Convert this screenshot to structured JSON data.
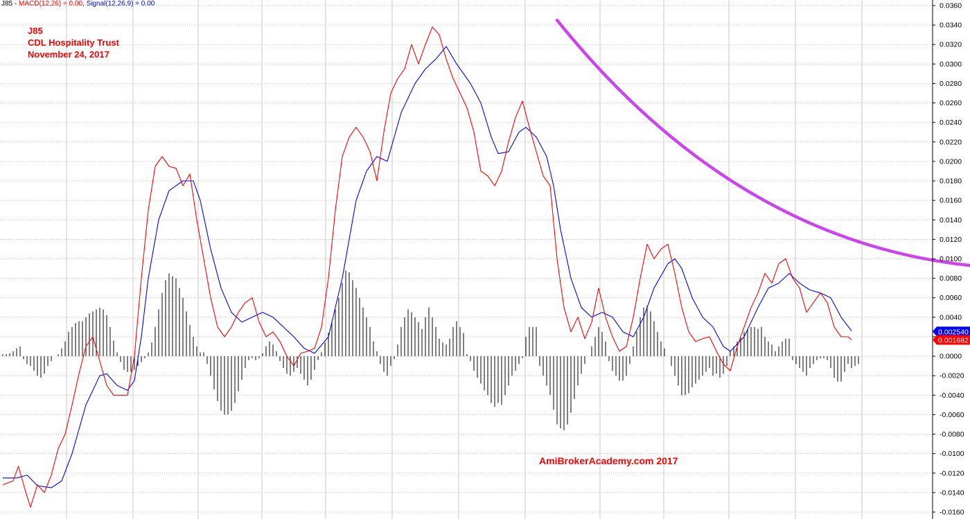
{
  "header": {
    "symbol": "J85",
    "sep": " - ",
    "macd_label": "MACD(12,26) = 0.00",
    "comma": ", ",
    "signal_label": "Signal(12,26,9) = 0.00"
  },
  "annotations": [
    "J85",
    "CDL Hospitality Trust",
    "November 24, 2017"
  ],
  "watermark": "AmiBrokerAcademy.com  2017",
  "colors": {
    "macd": "#ff0000",
    "signal": "#0000ff",
    "histogram": "#000000",
    "trendline": "#cc44ee",
    "grid": "#c8c8c8"
  },
  "chart_data": {
    "type": "line",
    "y_range": [
      -0.016,
      0.036
    ],
    "y_ticks": [
      "0.0360",
      "0.0340",
      "0.0320",
      "0.0300",
      "0.0280",
      "0.0260",
      "0.0240",
      "0.0220",
      "0.0200",
      "0.0180",
      "0.0160",
      "0.0140",
      "0.0120",
      "0.0100",
      "0.0080",
      "0.0060",
      "0.0040",
      "0.0020",
      "0.0000",
      "-0.0020",
      "-0.0040",
      "-0.0060",
      "-0.0080",
      "-0.0100",
      "-0.0120",
      "-0.0140",
      "-0.0160"
    ],
    "grid": true,
    "bar_count": 245,
    "series": [
      {
        "name": "MACD(12,26)",
        "color": "#ff0000",
        "points": [
          [
            0,
            -0.0132
          ],
          [
            6,
            -0.0128
          ],
          [
            9,
            -0.0113
          ],
          [
            13,
            -0.0138
          ],
          [
            16,
            -0.0155
          ],
          [
            20,
            -0.0132
          ],
          [
            24,
            -0.014
          ],
          [
            28,
            -0.0122
          ],
          [
            32,
            -0.0095
          ],
          [
            36,
            -0.008
          ],
          [
            40,
            -0.005
          ],
          [
            44,
            -0.0018
          ],
          [
            48,
            0.001
          ],
          [
            52,
            0.002
          ],
          [
            56,
            -0.0005
          ],
          [
            60,
            -0.003
          ],
          [
            64,
            -0.004
          ],
          [
            68,
            -0.004
          ],
          [
            72,
            -0.004
          ],
          [
            76,
            0.0
          ],
          [
            80,
            0.008
          ],
          [
            84,
            0.015
          ],
          [
            88,
            0.0195
          ],
          [
            92,
            0.0205
          ],
          [
            96,
            0.0195
          ],
          [
            100,
            0.0193
          ],
          [
            104,
            0.0175
          ],
          [
            108,
            0.0187
          ],
          [
            112,
            0.014
          ],
          [
            116,
            0.01
          ],
          [
            120,
            0.006
          ],
          [
            124,
            0.003
          ],
          [
            128,
            0.002
          ],
          [
            132,
            0.003
          ],
          [
            136,
            0.0045
          ],
          [
            140,
            0.0055
          ],
          [
            144,
            0.006
          ],
          [
            148,
            0.0035
          ],
          [
            152,
            0.002
          ],
          [
            156,
            0.0025
          ],
          [
            160,
            0.0015
          ],
          [
            164,
            0.0
          ],
          [
            168,
            -0.001
          ],
          [
            172,
            0.0003
          ],
          [
            176,
            0.0005
          ],
          [
            180,
            0.0008
          ],
          [
            184,
            0.003
          ],
          [
            188,
            0.008
          ],
          [
            192,
            0.015
          ],
          [
            196,
            0.0205
          ],
          [
            200,
            0.0225
          ],
          [
            204,
            0.0235
          ],
          [
            208,
            0.0225
          ],
          [
            212,
            0.021
          ],
          [
            216,
            0.018
          ],
          [
            220,
            0.023
          ],
          [
            224,
            0.027
          ],
          [
            228,
            0.0285
          ],
          [
            232,
            0.0295
          ],
          [
            236,
            0.032
          ],
          [
            240,
            0.03
          ],
          [
            244,
            0.032
          ],
          [
            248,
            0.0338
          ],
          [
            252,
            0.033
          ],
          [
            256,
            0.0305
          ],
          [
            260,
            0.0285
          ],
          [
            264,
            0.027
          ],
          [
            268,
            0.0255
          ],
          [
            272,
            0.023
          ],
          [
            276,
            0.019
          ],
          [
            280,
            0.0185
          ],
          [
            284,
            0.0175
          ],
          [
            288,
            0.019
          ],
          [
            292,
            0.022
          ],
          [
            296,
            0.0245
          ],
          [
            300,
            0.0262
          ],
          [
            304,
            0.0235
          ],
          [
            308,
            0.021
          ],
          [
            312,
            0.0185
          ],
          [
            316,
            0.0175
          ],
          [
            320,
            0.01
          ],
          [
            324,
            0.005
          ],
          [
            328,
            0.0025
          ],
          [
            332,
            0.004
          ],
          [
            336,
            0.0018
          ],
          [
            340,
            0.0035
          ],
          [
            344,
            0.007
          ],
          [
            348,
            0.004
          ],
          [
            352,
            0.002
          ],
          [
            356,
            0.0005
          ],
          [
            360,
            0.001
          ],
          [
            364,
            0.004
          ],
          [
            368,
            0.008
          ],
          [
            372,
            0.0115
          ],
          [
            376,
            0.01
          ],
          [
            380,
            0.011
          ],
          [
            384,
            0.0115
          ],
          [
            388,
            0.0085
          ],
          [
            392,
            0.005
          ],
          [
            396,
            0.0025
          ],
          [
            400,
            0.0015
          ],
          [
            404,
            0.0018
          ],
          [
            408,
            0.002
          ],
          [
            412,
            0.0005
          ],
          [
            416,
            -0.0008
          ],
          [
            420,
            -0.0015
          ],
          [
            424,
            0.001
          ],
          [
            428,
            0.003
          ],
          [
            432,
            0.005
          ],
          [
            436,
            0.0065
          ],
          [
            440,
            0.0085
          ],
          [
            444,
            0.0075
          ],
          [
            448,
            0.0095
          ],
          [
            452,
            0.01
          ],
          [
            456,
            0.008
          ],
          [
            460,
            0.007
          ],
          [
            464,
            0.0045
          ],
          [
            468,
            0.0055
          ],
          [
            472,
            0.0065
          ],
          [
            476,
            0.0055
          ],
          [
            480,
            0.003
          ],
          [
            484,
            0.002
          ],
          [
            488,
            0.002
          ],
          [
            490,
            0.0017
          ]
        ]
      },
      {
        "name": "Signal(12,26,9)",
        "color": "#0000ff",
        "points": [
          [
            0,
            -0.0125
          ],
          [
            8,
            -0.0125
          ],
          [
            14,
            -0.0122
          ],
          [
            20,
            -0.0133
          ],
          [
            28,
            -0.0135
          ],
          [
            34,
            -0.0128
          ],
          [
            40,
            -0.01
          ],
          [
            48,
            -0.005
          ],
          [
            56,
            -0.002
          ],
          [
            60,
            -0.0018
          ],
          [
            66,
            -0.003
          ],
          [
            72,
            -0.0035
          ],
          [
            76,
            -0.0025
          ],
          [
            80,
            0.002
          ],
          [
            84,
            0.008
          ],
          [
            90,
            0.014
          ],
          [
            96,
            0.017
          ],
          [
            104,
            0.018
          ],
          [
            110,
            0.018
          ],
          [
            114,
            0.016
          ],
          [
            120,
            0.011
          ],
          [
            126,
            0.007
          ],
          [
            132,
            0.0045
          ],
          [
            138,
            0.0035
          ],
          [
            144,
            0.004
          ],
          [
            150,
            0.0045
          ],
          [
            156,
            0.004
          ],
          [
            162,
            0.003
          ],
          [
            168,
            0.002
          ],
          [
            174,
            0.0008
          ],
          [
            180,
            0.0003
          ],
          [
            188,
            0.002
          ],
          [
            196,
            0.008
          ],
          [
            204,
            0.016
          ],
          [
            210,
            0.019
          ],
          [
            216,
            0.0205
          ],
          [
            222,
            0.02
          ],
          [
            230,
            0.025
          ],
          [
            238,
            0.028
          ],
          [
            244,
            0.0295
          ],
          [
            250,
            0.0305
          ],
          [
            256,
            0.0318
          ],
          [
            262,
            0.03
          ],
          [
            270,
            0.028
          ],
          [
            276,
            0.026
          ],
          [
            282,
            0.0225
          ],
          [
            286,
            0.0208
          ],
          [
            292,
            0.021
          ],
          [
            298,
            0.023
          ],
          [
            302,
            0.0235
          ],
          [
            308,
            0.0225
          ],
          [
            314,
            0.0205
          ],
          [
            318,
            0.0175
          ],
          [
            322,
            0.013
          ],
          [
            328,
            0.008
          ],
          [
            334,
            0.005
          ],
          [
            340,
            0.004
          ],
          [
            346,
            0.0045
          ],
          [
            352,
            0.004
          ],
          [
            358,
            0.0025
          ],
          [
            364,
            0.002
          ],
          [
            370,
            0.004
          ],
          [
            376,
            0.007
          ],
          [
            384,
            0.0095
          ],
          [
            388,
            0.01
          ],
          [
            392,
            0.009
          ],
          [
            398,
            0.006
          ],
          [
            404,
            0.004
          ],
          [
            410,
            0.003
          ],
          [
            416,
            0.001
          ],
          [
            420,
            0.0005
          ],
          [
            428,
            0.002
          ],
          [
            436,
            0.005
          ],
          [
            442,
            0.007
          ],
          [
            448,
            0.0075
          ],
          [
            454,
            0.0085
          ],
          [
            460,
            0.0075
          ],
          [
            466,
            0.0068
          ],
          [
            472,
            0.0065
          ],
          [
            478,
            0.006
          ],
          [
            484,
            0.004
          ],
          [
            490,
            0.0026
          ]
        ]
      }
    ],
    "histogram": [
      0.0002,
      0.0002,
      0.0003,
      0.0005,
      0.0008,
      0.001,
      -0.0003,
      -0.0008,
      -0.001,
      -0.0015,
      -0.002,
      -0.0022,
      -0.0018,
      -0.001,
      -0.0005,
      0.0,
      0.0002,
      0.0008,
      0.0015,
      0.0025,
      0.003,
      0.0034,
      0.0036,
      0.0036,
      0.004,
      0.0044,
      0.0046,
      0.0048,
      0.005,
      0.0048,
      0.0042,
      0.003,
      0.0016,
      0.0004,
      -0.0006,
      -0.0014,
      -0.0016,
      -0.0016,
      -0.0014,
      -0.001,
      -0.0006,
      -0.0002,
      0.0004,
      0.0014,
      0.003,
      0.0048,
      0.0065,
      0.0078,
      0.0085,
      0.0082,
      0.008,
      0.007,
      0.006,
      0.0046,
      0.0032,
      0.002,
      0.001,
      0.0004,
      0.0004,
      -0.0008,
      -0.002,
      -0.0034,
      -0.0046,
      -0.0056,
      -0.006,
      -0.006,
      -0.0056,
      -0.0048,
      -0.0036,
      -0.0024,
      -0.0012,
      -0.0004,
      -0.0002,
      -0.0004,
      -0.0002,
      0.0003,
      0.001,
      0.0015,
      0.0012,
      0.0005,
      -0.0005,
      -0.0012,
      -0.0018,
      -0.002,
      -0.0016,
      -0.0012,
      -0.0018,
      -0.0024,
      -0.003,
      -0.0024,
      -0.0014,
      -0.0004,
      0.0004,
      0.0014,
      0.0024,
      0.0036,
      0.0048,
      0.006,
      0.0075,
      0.0088,
      0.0086,
      0.0078,
      0.007,
      0.006,
      0.005,
      0.004,
      0.003,
      0.0015,
      0.0005,
      -0.0008,
      -0.0016,
      -0.002,
      -0.001,
      -0.0003,
      0.0012,
      0.003,
      0.004,
      0.0048,
      0.0045,
      0.004,
      0.0035,
      0.0028,
      0.004,
      0.005,
      0.004,
      0.003,
      0.0018,
      0.0014,
      0.0012,
      0.0018,
      0.003,
      0.0036,
      0.003,
      0.0024,
      0.0002,
      -0.0005,
      -0.0015,
      -0.0022,
      -0.0028,
      -0.0035,
      -0.004,
      -0.0048,
      -0.0052,
      -0.0048,
      -0.005,
      -0.004,
      -0.003,
      -0.002,
      -0.0015,
      -0.0008,
      -0.0002,
      0.002,
      0.003,
      0.003,
      0.003,
      -0.001,
      -0.002,
      -0.003,
      -0.004,
      -0.0055,
      -0.007,
      -0.0074,
      -0.0076,
      -0.007,
      -0.0058,
      -0.0044,
      -0.003,
      -0.0018,
      -0.0008,
      0.0,
      0.001,
      0.002,
      0.003,
      0.0025,
      0.0015,
      -0.0005,
      -0.0015,
      -0.002,
      -0.0025,
      -0.0025,
      -0.002,
      -0.0008,
      0.001,
      0.0025,
      0.004,
      0.005,
      0.0052,
      0.0046,
      0.0036,
      0.0025,
      0.0015,
      0.0008,
      0.0,
      -0.001,
      -0.002,
      -0.003,
      -0.004,
      -0.004,
      -0.0038,
      -0.0032,
      -0.0028,
      -0.0024,
      -0.002,
      -0.0016,
      -0.0012,
      -0.002,
      -0.0018,
      -0.0022,
      -0.0018,
      -0.001,
      0.0005,
      0.001,
      0.0015,
      0.002,
      0.0025,
      0.0028,
      0.003,
      0.003,
      0.0028,
      0.003,
      0.002,
      0.0015,
      0.0012,
      0.0005,
      0.001,
      0.0015,
      0.0018,
      0.0018,
      -0.0004,
      -0.0008,
      -0.0012,
      -0.0016,
      -0.002,
      -0.0012,
      -0.0008,
      -0.0004,
      -0.0002,
      -0.0002,
      -0.0004,
      -0.0012,
      -0.0022,
      -0.0026,
      -0.0026,
      -0.0016,
      -0.0008,
      -0.0012,
      -0.001,
      -0.0008
    ],
    "trendline": {
      "color": "#cc44ee",
      "points": [
        [
          320,
          0.0345
        ],
        [
          600,
          0.009
        ]
      ]
    },
    "last_values": [
      {
        "label": "0.002540",
        "color": "#0000ff",
        "value": 0.00254
      },
      {
        "label": "0.001682",
        "color": "#ff0000",
        "value": 0.00168
      }
    ]
  }
}
